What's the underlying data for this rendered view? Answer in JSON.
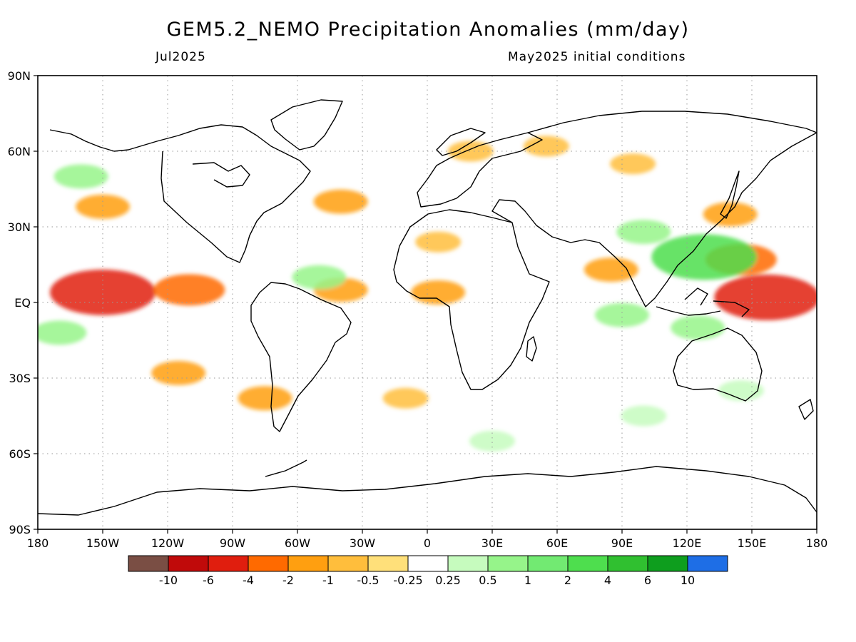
{
  "title": "GEM5.2_NEMO Precipitation Anomalies (mm/day)",
  "subtitle_left": "Jul2025",
  "subtitle_right": "May2025 initial conditions",
  "lat_labels": [
    "90N",
    "60N",
    "30N",
    "EQ",
    "30S",
    "60S",
    "90S"
  ],
  "lon_labels": [
    "180",
    "150W",
    "120W",
    "90W",
    "60W",
    "30W",
    "0",
    "30E",
    "60E",
    "90E",
    "120E",
    "150E",
    "180"
  ],
  "colorbar": {
    "colors": [
      "#7a4e44",
      "#c00a0a",
      "#e01e0e",
      "#ff6a00",
      "#ff9f10",
      "#ffbe3c",
      "#ffe07a",
      "#ffffff",
      "#c6fbbe",
      "#96f48a",
      "#72ea72",
      "#4ede4e",
      "#30c030",
      "#0e9e1e",
      "#1e6ee6"
    ],
    "labels": [
      "-10",
      "-6",
      "-4",
      "-2",
      "-1",
      "-0.5",
      "-0.25",
      "0.25",
      "0.5",
      "1",
      "2",
      "4",
      "6",
      "10"
    ]
  },
  "chart_data": {
    "type": "heatmap",
    "title": "GEM5.2_NEMO Precipitation Anomalies (mm/day)",
    "subtitle": "Jul2025",
    "note": "May2025 initial conditions",
    "xlabel": "",
    "ylabel": "",
    "xlim": [
      -180,
      180
    ],
    "ylim": [
      -90,
      90
    ],
    "x_ticks": [
      -180,
      -150,
      -120,
      -90,
      -60,
      -30,
      0,
      30,
      60,
      90,
      120,
      150,
      180
    ],
    "y_ticks": [
      -90,
      -60,
      -30,
      0,
      30,
      60,
      90
    ],
    "grid": true,
    "levels": [
      -10,
      -6,
      -4,
      -2,
      -1,
      -0.5,
      -0.25,
      0.25,
      0.5,
      1,
      2,
      4,
      6,
      10
    ],
    "anomaly_regions": [
      {
        "lon": -150,
        "lat": 4,
        "value": -4
      },
      {
        "lon": -110,
        "lat": 5,
        "value": -2
      },
      {
        "lon": -40,
        "lat": 5,
        "value": -1
      },
      {
        "lon": 5,
        "lat": 4,
        "value": -1
      },
      {
        "lon": -150,
        "lat": 38,
        "value": -1
      },
      {
        "lon": -40,
        "lat": 40,
        "value": -1
      },
      {
        "lon": 20,
        "lat": 60,
        "value": -0.5
      },
      {
        "lon": 55,
        "lat": 62,
        "value": -0.5
      },
      {
        "lon": 95,
        "lat": 55,
        "value": -0.5
      },
      {
        "lon": -115,
        "lat": -28,
        "value": -1
      },
      {
        "lon": -75,
        "lat": -38,
        "value": -1
      },
      {
        "lon": -10,
        "lat": -38,
        "value": -0.5
      },
      {
        "lon": 145,
        "lat": 17,
        "value": -2
      },
      {
        "lon": 157,
        "lat": 2,
        "value": -4
      },
      {
        "lon": 85,
        "lat": 13,
        "value": -1
      },
      {
        "lon": 140,
        "lat": 35,
        "value": -1
      },
      {
        "lon": 5,
        "lat": 24,
        "value": -0.5
      },
      {
        "lon": 128,
        "lat": 18,
        "value": 4
      },
      {
        "lon": 100,
        "lat": 28,
        "value": 1
      },
      {
        "lon": 90,
        "lat": -5,
        "value": 1
      },
      {
        "lon": 125,
        "lat": -10,
        "value": 1
      },
      {
        "lon": -50,
        "lat": 10,
        "value": 1
      },
      {
        "lon": -170,
        "lat": -12,
        "value": 1
      },
      {
        "lon": -160,
        "lat": 50,
        "value": 1
      },
      {
        "lon": 145,
        "lat": -35,
        "value": 0.5
      },
      {
        "lon": 100,
        "lat": -45,
        "value": 0.5
      },
      {
        "lon": 30,
        "lat": -55,
        "value": 0.5
      }
    ]
  }
}
